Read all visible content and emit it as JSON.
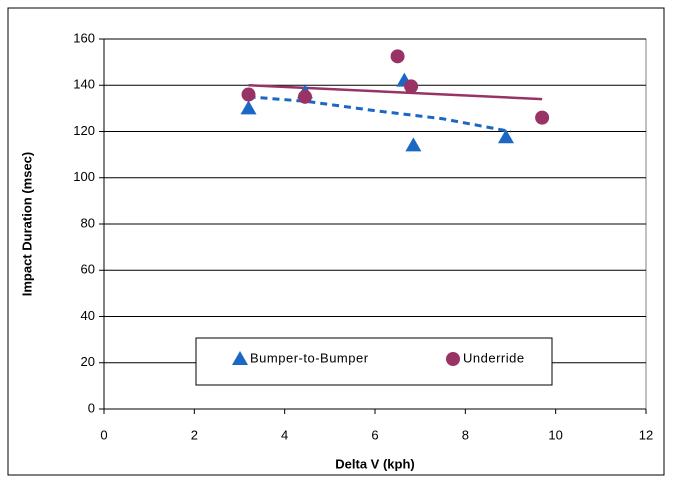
{
  "chart_data": {
    "type": "scatter",
    "x_label": "Delta V (kph)",
    "y_label": "Impact Duration (msec)",
    "xlim": [
      0,
      12
    ],
    "xticks": [
      0,
      2,
      4,
      6,
      8,
      10,
      12
    ],
    "ylim": [
      0,
      160
    ],
    "yticks": [
      0,
      20,
      40,
      60,
      80,
      100,
      120,
      140,
      160
    ],
    "grid": true,
    "legend": "bottom",
    "series": [
      {
        "name": "Bumper-to-Bumper",
        "color": "#1b67c4",
        "marker": "triangle",
        "x": [
          3.2,
          4.45,
          6.65,
          6.85,
          8.9
        ],
        "values": [
          130,
          137,
          142,
          114,
          117.5
        ]
      },
      {
        "name": "Underride",
        "color": "#993366",
        "marker": "circle",
        "x": [
          3.2,
          4.45,
          6.5,
          6.8,
          9.7
        ],
        "values": [
          136,
          135,
          152.5,
          139.5,
          126
        ]
      }
    ],
    "trendlines": [
      {
        "color": "#1b67c4",
        "dashed": true,
        "x": [
          3.2,
          4.5,
          6,
          7.5,
          9
        ],
        "values": [
          135,
          133,
          129,
          125.5,
          120
        ]
      },
      {
        "color": "#993366",
        "dashed": false,
        "x": [
          3.2,
          9.7
        ],
        "values": [
          140,
          134
        ]
      }
    ]
  }
}
